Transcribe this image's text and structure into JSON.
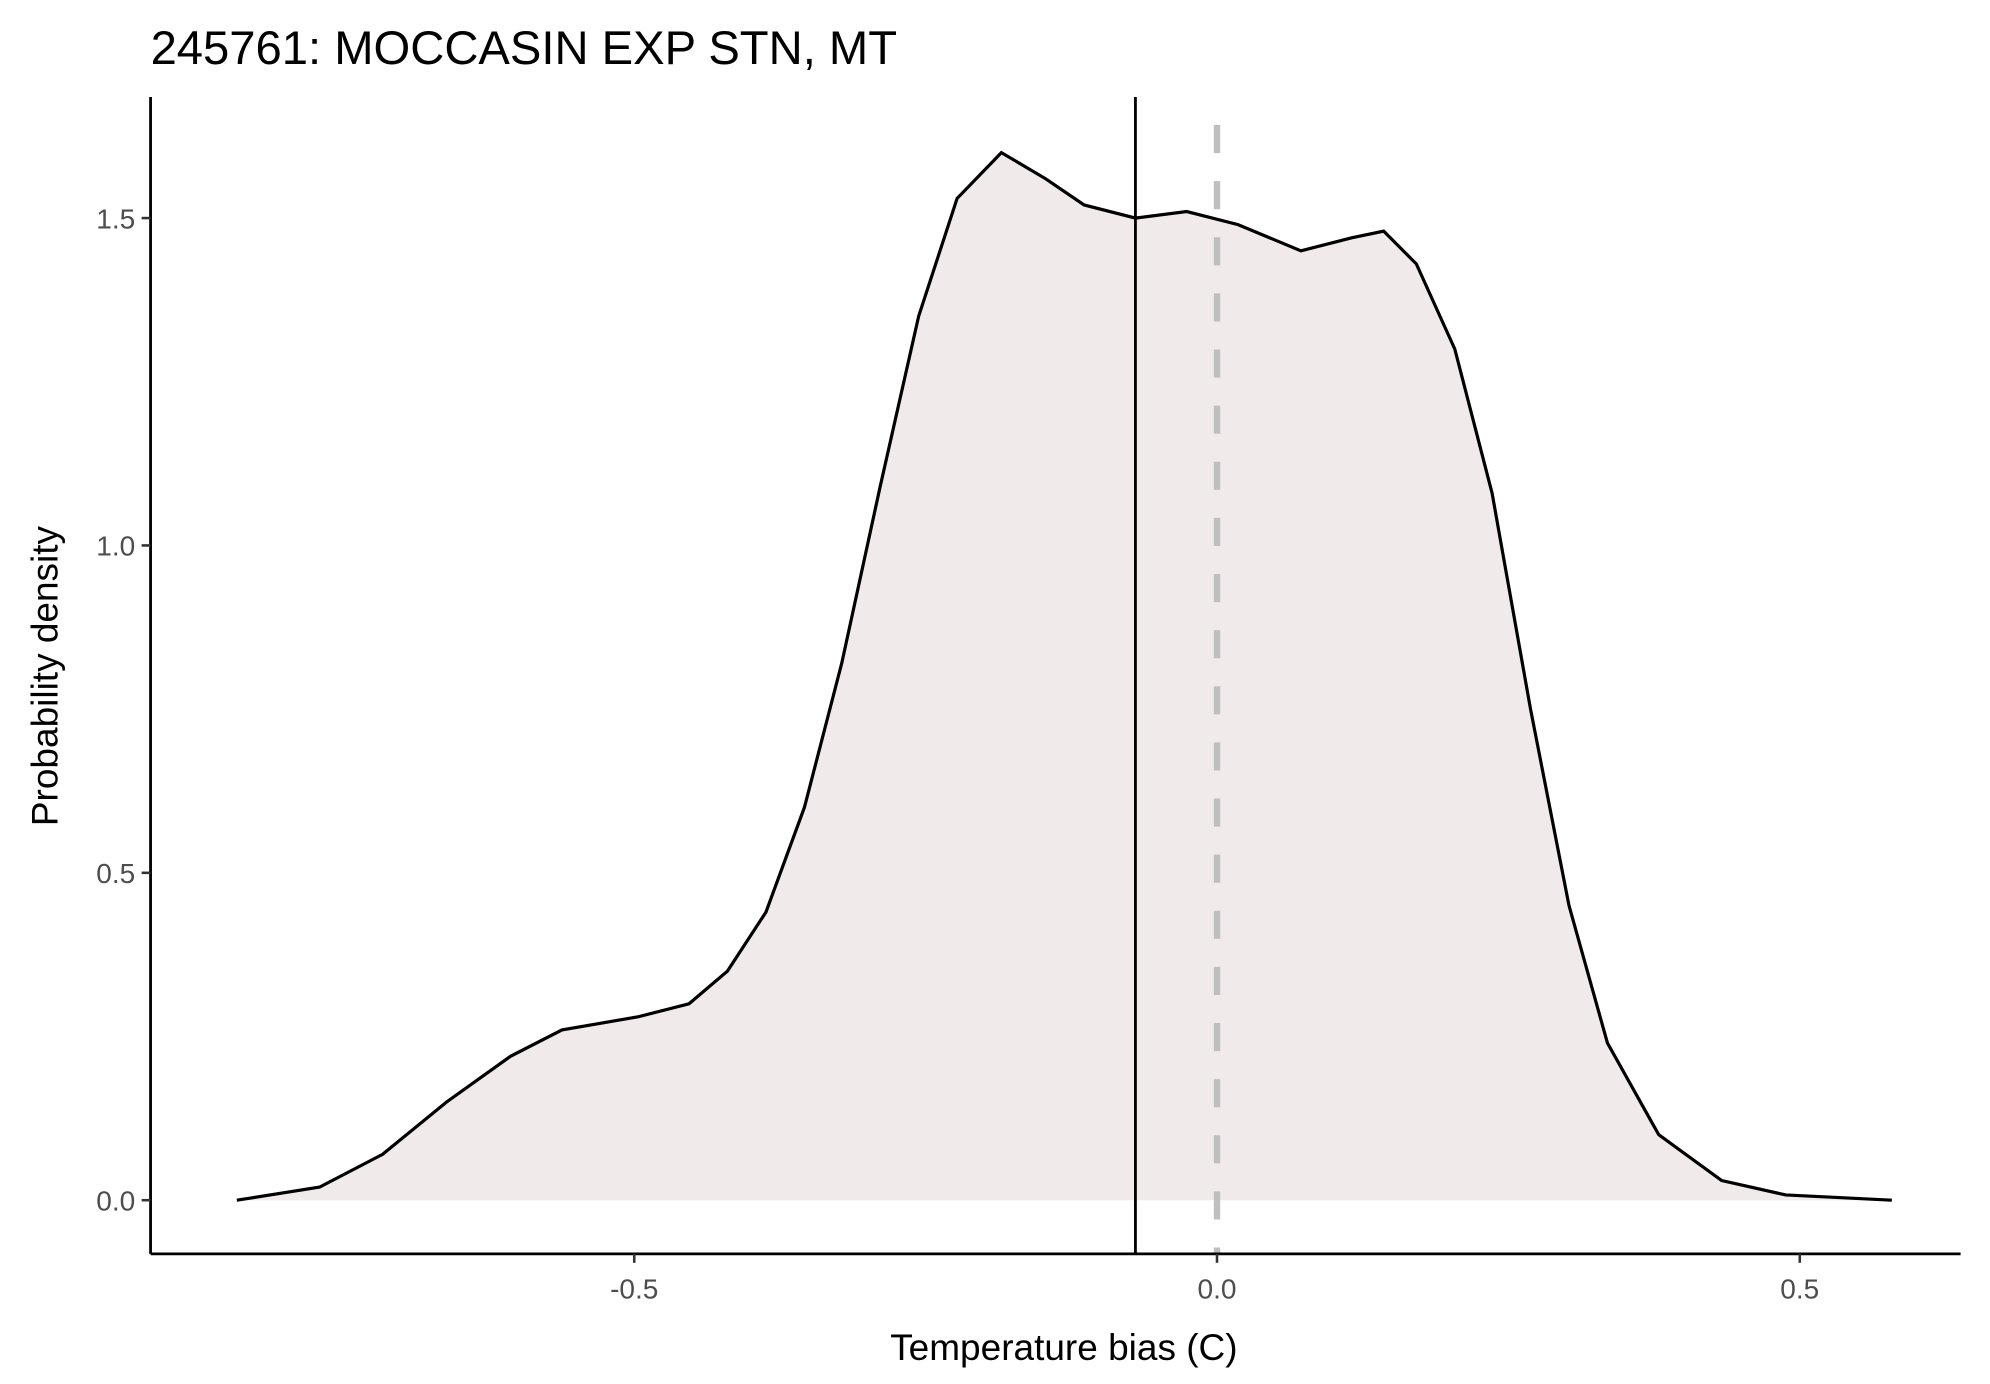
{
  "chart_data": {
    "type": "density",
    "title": "245761: MOCCASIN EXP STN, MT",
    "x_label": "Temperature bias (C)",
    "y_label": "Probability density",
    "x": [
      -0.841,
      -0.77,
      -0.716,
      -0.661,
      -0.606,
      -0.562,
      -0.497,
      -0.453,
      -0.42,
      -0.387,
      -0.354,
      -0.322,
      -0.289,
      -0.256,
      -0.223,
      -0.185,
      -0.147,
      -0.114,
      -0.07,
      -0.026,
      0.018,
      0.072,
      0.116,
      0.143,
      0.171,
      0.204,
      0.236,
      0.269,
      0.302,
      0.335,
      0.379,
      0.433,
      0.488,
      0.579
    ],
    "values": [
      0,
      0.02,
      0.07,
      0.15,
      0.22,
      0.26,
      0.28,
      0.3,
      0.35,
      0.44,
      0.6,
      0.82,
      1.09,
      1.35,
      1.53,
      1.6,
      1.56,
      1.52,
      1.5,
      1.51,
      1.49,
      1.45,
      1.47,
      1.48,
      1.43,
      1.3,
      1.08,
      0.75,
      0.45,
      0.24,
      0.1,
      0.03,
      0.008,
      0
    ],
    "fill_color": "#f0ebea",
    "line_color": "#000000",
    "mean_line": -0.07,
    "mean_line_color": "#000000",
    "reference_line": 0,
    "reference_line_color": "#bfbfbf",
    "xlim": [
      -0.915,
      0.638
    ],
    "ylim": [
      -0.082,
      1.685
    ],
    "xticks": [
      -0.5,
      {
        "value": 0,
        "label": "0.0"
      },
      0.5
    ],
    "yticks": [
      {
        "value": 0,
        "label": "0.0"
      },
      0.5,
      {
        "value": 1,
        "label": "1.0"
      },
      1.5
    ]
  }
}
